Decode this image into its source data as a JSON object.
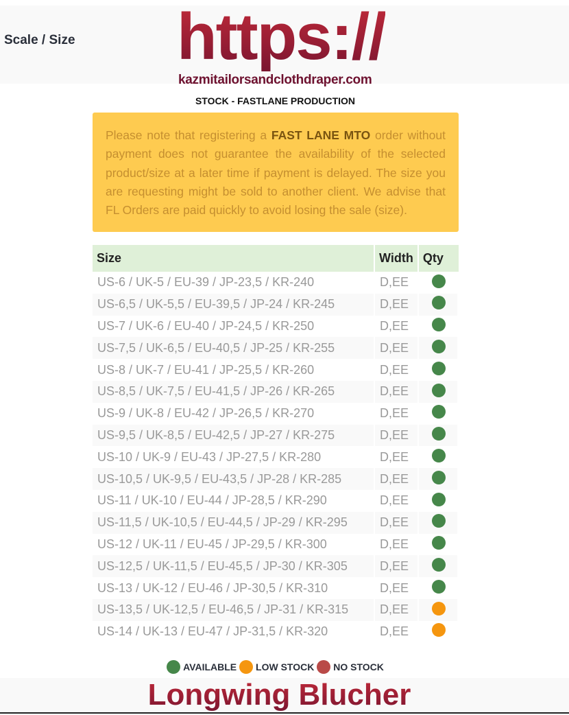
{
  "header": {
    "label": "Scale / Size",
    "logo_text": "https://",
    "domain": "kazmitailorsandclothdraper.com",
    "subtitle": "STOCK - FASTLANE PRODUCTION"
  },
  "notice": {
    "before": "Please note that registering a ",
    "bold": "FAST LANE MTO",
    "after": " order without payment does not guarantee the availability of the selected product/size at a later time if payment is delayed. The size you are requesting might be sold to another client. We advise that FL Orders are paid quickly to avoid losing the sale (size)."
  },
  "table": {
    "headers": [
      "Size",
      "Width",
      "Qty"
    ],
    "rows": [
      {
        "size": "US-6 / UK-5 / EU-39 / JP-23,5 / KR-240",
        "width": "D,EE",
        "status": "available"
      },
      {
        "size": "US-6,5 / UK-5,5 / EU-39,5 / JP-24 / KR-245",
        "width": "D,EE",
        "status": "available"
      },
      {
        "size": "US-7 / UK-6 / EU-40 / JP-24,5 / KR-250",
        "width": "D,EE",
        "status": "available"
      },
      {
        "size": "US-7,5 / UK-6,5 / EU-40,5 / JP-25 / KR-255",
        "width": "D,EE",
        "status": "available"
      },
      {
        "size": "US-8 / UK-7 / EU-41 / JP-25,5 / KR-260",
        "width": "D,EE",
        "status": "available"
      },
      {
        "size": "US-8,5 / UK-7,5 / EU-41,5 / JP-26 / KR-265",
        "width": "D,EE",
        "status": "available"
      },
      {
        "size": "US-9 / UK-8 / EU-42 / JP-26,5 / KR-270",
        "width": "D,EE",
        "status": "available"
      },
      {
        "size": "US-9,5 / UK-8,5 / EU-42,5 / JP-27 / KR-275",
        "width": "D,EE",
        "status": "available"
      },
      {
        "size": "US-10 / UK-9 / EU-43 / JP-27,5 / KR-280",
        "width": "D,EE",
        "status": "available"
      },
      {
        "size": "US-10,5 / UK-9,5 / EU-43,5 / JP-28 / KR-285",
        "width": "D,EE",
        "status": "available"
      },
      {
        "size": "US-11 / UK-10 / EU-44 / JP-28,5 / KR-290",
        "width": "D,EE",
        "status": "available"
      },
      {
        "size": "US-11,5 / UK-10,5 / EU-44,5 / JP-29 / KR-295",
        "width": "D,EE",
        "status": "available"
      },
      {
        "size": "US-12 / UK-11 / EU-45 / JP-29,5 / KR-300",
        "width": "D,EE",
        "status": "available"
      },
      {
        "size": "US-12,5 / UK-11,5 / EU-45,5 / JP-30 / KR-305",
        "width": "D,EE",
        "status": "available"
      },
      {
        "size": "US-13 / UK-12 / EU-46 / JP-30,5 / KR-310",
        "width": "D,EE",
        "status": "available"
      },
      {
        "size": "US-13,5 / UK-12,5 / EU-46,5 / JP-31 / KR-315",
        "width": "D,EE",
        "status": "low"
      },
      {
        "size": "US-14 / UK-13 / EU-47 / JP-31,5 / KR-320",
        "width": "D,EE",
        "status": "low"
      }
    ]
  },
  "legend": [
    {
      "key": "available",
      "label": "AVAILABLE",
      "color": "#46874a"
    },
    {
      "key": "low",
      "label": "LOW STOCK",
      "color": "#f5960f"
    },
    {
      "key": "none",
      "label": "NO STOCK",
      "color": "#b94a48"
    }
  ],
  "product": {
    "name": "Longwing Blucher"
  }
}
